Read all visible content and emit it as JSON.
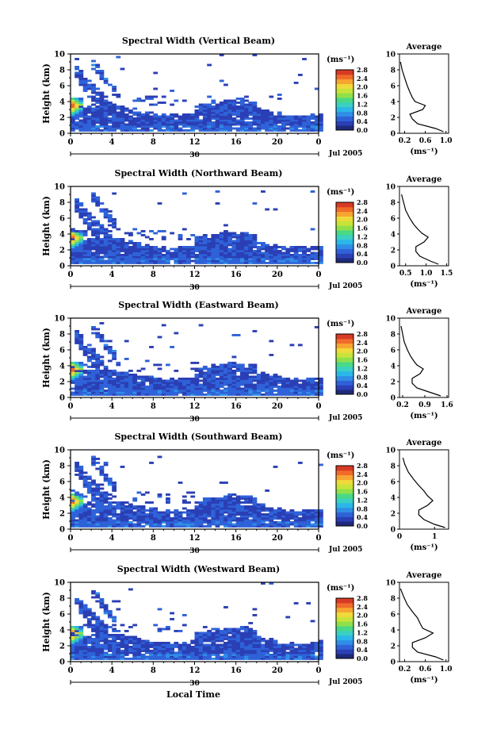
{
  "figure": {
    "xlabel_bottom": "Local Time",
    "date_label": "Jul 2005",
    "day_label": "30",
    "colorbar_unit": "(ms⁻¹)",
    "colorbar_ticks": [
      "2.8",
      "2.4",
      "2.0",
      "1.6",
      "1.2",
      "0.8",
      "0.4",
      "0.0"
    ],
    "average_title": "Average",
    "average_unit": "(ms⁻¹)",
    "time_ticks": [
      "0",
      "4",
      "8",
      "12",
      "16",
      "20",
      "0"
    ],
    "height_ticks": [
      "10",
      "8",
      "6",
      "4",
      "2",
      "0"
    ]
  },
  "chart_data": [
    {
      "type": "heatmap",
      "title": "Spectral Width (Vertical Beam)",
      "ylabel": "Height (km)",
      "xlabel": "",
      "xlim": [
        0,
        24
      ],
      "ylim": [
        0,
        10
      ],
      "colorbar_range": [
        0.0,
        2.8
      ],
      "features": [
        {
          "name": "core",
          "t0": 0,
          "t1": 24,
          "h0": 0.2,
          "h1": 3.0
        },
        {
          "name": "plume",
          "t0": 0,
          "t1": 1.2,
          "h0": 2.0,
          "h1": 4.2,
          "peak": 2.8
        }
      ],
      "average": {
        "xticks": [
          "0.2",
          "0.6",
          "1.0"
        ],
        "xlim": [
          0.1,
          1.05
        ],
        "profile": [
          [
            0.95,
            0.2
          ],
          [
            0.8,
            0.6
          ],
          [
            0.45,
            1.2
          ],
          [
            0.35,
            1.8
          ],
          [
            0.3,
            2.4
          ],
          [
            0.55,
            3.0
          ],
          [
            0.6,
            3.5
          ],
          [
            0.4,
            4.0
          ],
          [
            0.35,
            4.5
          ],
          [
            0.3,
            5.2
          ],
          [
            0.25,
            6.0
          ],
          [
            0.2,
            7.0
          ],
          [
            0.15,
            8.0
          ],
          [
            0.12,
            9.0
          ]
        ]
      }
    },
    {
      "type": "heatmap",
      "title": "Spectral Width (Northward Beam)",
      "ylabel": "Height (km)",
      "xlabel": "",
      "xlim": [
        0,
        24
      ],
      "ylim": [
        0,
        10
      ],
      "colorbar_range": [
        0.0,
        2.8
      ],
      "features": [
        {
          "name": "core",
          "t0": 0,
          "t1": 24,
          "h0": 0.2,
          "h1": 3.0
        },
        {
          "name": "plume",
          "t0": 0,
          "t1": 1.2,
          "h0": 2.0,
          "h1": 4.2,
          "peak": 2.8
        }
      ],
      "average": {
        "xticks": [
          "0.5",
          "1.0",
          "1.5"
        ],
        "xlim": [
          0.35,
          1.55
        ],
        "profile": [
          [
            1.3,
            0.2
          ],
          [
            1.1,
            0.6
          ],
          [
            0.85,
            1.2
          ],
          [
            0.75,
            1.8
          ],
          [
            0.75,
            2.4
          ],
          [
            0.95,
            3.0
          ],
          [
            1.05,
            3.6
          ],
          [
            0.9,
            4.1
          ],
          [
            0.8,
            4.6
          ],
          [
            0.7,
            5.2
          ],
          [
            0.6,
            6.0
          ],
          [
            0.5,
            7.0
          ],
          [
            0.45,
            8.0
          ],
          [
            0.4,
            9.0
          ]
        ]
      }
    },
    {
      "type": "heatmap",
      "title": "Spectral Width (Eastward Beam)",
      "ylabel": "Height (km)",
      "xlabel": "",
      "xlim": [
        0,
        24
      ],
      "ylim": [
        0,
        10
      ],
      "colorbar_range": [
        0.0,
        2.8
      ],
      "features": [
        {
          "name": "core",
          "t0": 0,
          "t1": 24,
          "h0": 0.2,
          "h1": 3.0
        },
        {
          "name": "plume",
          "t0": 0,
          "t1": 1.2,
          "h0": 2.0,
          "h1": 4.2,
          "peak": 2.8
        }
      ],
      "average": {
        "xticks": [
          "0.2",
          "0.9",
          "1.6"
        ],
        "xlim": [
          0.1,
          1.65
        ],
        "profile": [
          [
            1.4,
            0.2
          ],
          [
            1.1,
            0.6
          ],
          [
            0.65,
            1.2
          ],
          [
            0.5,
            1.8
          ],
          [
            0.5,
            2.4
          ],
          [
            0.75,
            3.0
          ],
          [
            0.85,
            3.6
          ],
          [
            0.65,
            4.1
          ],
          [
            0.55,
            4.6
          ],
          [
            0.45,
            5.2
          ],
          [
            0.35,
            6.0
          ],
          [
            0.25,
            7.0
          ],
          [
            0.2,
            8.0
          ],
          [
            0.15,
            9.0
          ]
        ]
      }
    },
    {
      "type": "heatmap",
      "title": "Spectral Width (Southward Beam)",
      "ylabel": "Height (km)",
      "xlabel": "",
      "xlim": [
        0,
        24
      ],
      "ylim": [
        0,
        10
      ],
      "colorbar_range": [
        0.0,
        2.8
      ],
      "features": [
        {
          "name": "core",
          "t0": 0,
          "t1": 24,
          "h0": 0.2,
          "h1": 3.0
        },
        {
          "name": "plume",
          "t0": 0,
          "t1": 1.2,
          "h0": 2.0,
          "h1": 4.2,
          "peak": 2.8
        }
      ],
      "average": {
        "xticks": [
          "0",
          "1"
        ],
        "xlim": [
          0,
          1.4
        ],
        "profile": [
          [
            1.3,
            0.2
          ],
          [
            1.0,
            0.6
          ],
          [
            0.7,
            1.2
          ],
          [
            0.55,
            1.8
          ],
          [
            0.55,
            2.4
          ],
          [
            0.8,
            3.0
          ],
          [
            0.95,
            3.6
          ],
          [
            0.8,
            4.2
          ],
          [
            0.7,
            4.8
          ],
          [
            0.55,
            5.5
          ],
          [
            0.4,
            6.3
          ],
          [
            0.25,
            7.2
          ],
          [
            0.15,
            8.2
          ],
          [
            0.1,
            9.0
          ]
        ]
      }
    },
    {
      "type": "heatmap",
      "title": "Spectral Width (Westward Beam)",
      "ylabel": "Height (km)",
      "xlabel": "Local Time",
      "xlim": [
        0,
        24
      ],
      "ylim": [
        0,
        10
      ],
      "colorbar_range": [
        0.0,
        2.8
      ],
      "features": [
        {
          "name": "core",
          "t0": 0,
          "t1": 24,
          "h0": 0.2,
          "h1": 3.0
        },
        {
          "name": "plume",
          "t0": 0,
          "t1": 1.2,
          "h0": 2.0,
          "h1": 4.2,
          "peak": 2.8
        }
      ],
      "average": {
        "xticks": [
          "0.2",
          "0.6",
          "1.0"
        ],
        "xlim": [
          0.1,
          1.05
        ],
        "profile": [
          [
            0.95,
            0.2
          ],
          [
            0.8,
            0.6
          ],
          [
            0.45,
            1.2
          ],
          [
            0.35,
            1.8
          ],
          [
            0.35,
            2.4
          ],
          [
            0.6,
            3.0
          ],
          [
            0.75,
            3.6
          ],
          [
            0.55,
            4.2
          ],
          [
            0.5,
            4.8
          ],
          [
            0.45,
            5.5
          ],
          [
            0.35,
            6.3
          ],
          [
            0.25,
            7.2
          ],
          [
            0.18,
            8.2
          ],
          [
            0.12,
            9.2
          ]
        ]
      }
    }
  ]
}
